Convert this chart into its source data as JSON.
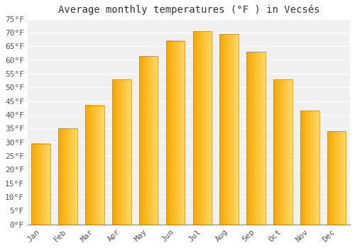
{
  "title": "Average monthly temperatures (°F ) in Vecsés",
  "months": [
    "Jan",
    "Feb",
    "Mar",
    "Apr",
    "May",
    "Jun",
    "Jul",
    "Aug",
    "Sep",
    "Oct",
    "Nov",
    "Dec"
  ],
  "values": [
    29.5,
    35.0,
    43.5,
    53.0,
    61.5,
    67.0,
    70.5,
    69.5,
    63.0,
    53.0,
    41.5,
    34.0
  ],
  "bar_color_left": "#F5A800",
  "bar_color_right": "#FFD966",
  "ylim": [
    0,
    75
  ],
  "yticks": [
    0,
    5,
    10,
    15,
    20,
    25,
    30,
    35,
    40,
    45,
    50,
    55,
    60,
    65,
    70,
    75
  ],
  "background_color": "#ffffff",
  "plot_bg_color": "#f0f0f0",
  "grid_color": "#ffffff",
  "title_fontsize": 10,
  "tick_fontsize": 8,
  "font_family": "monospace"
}
